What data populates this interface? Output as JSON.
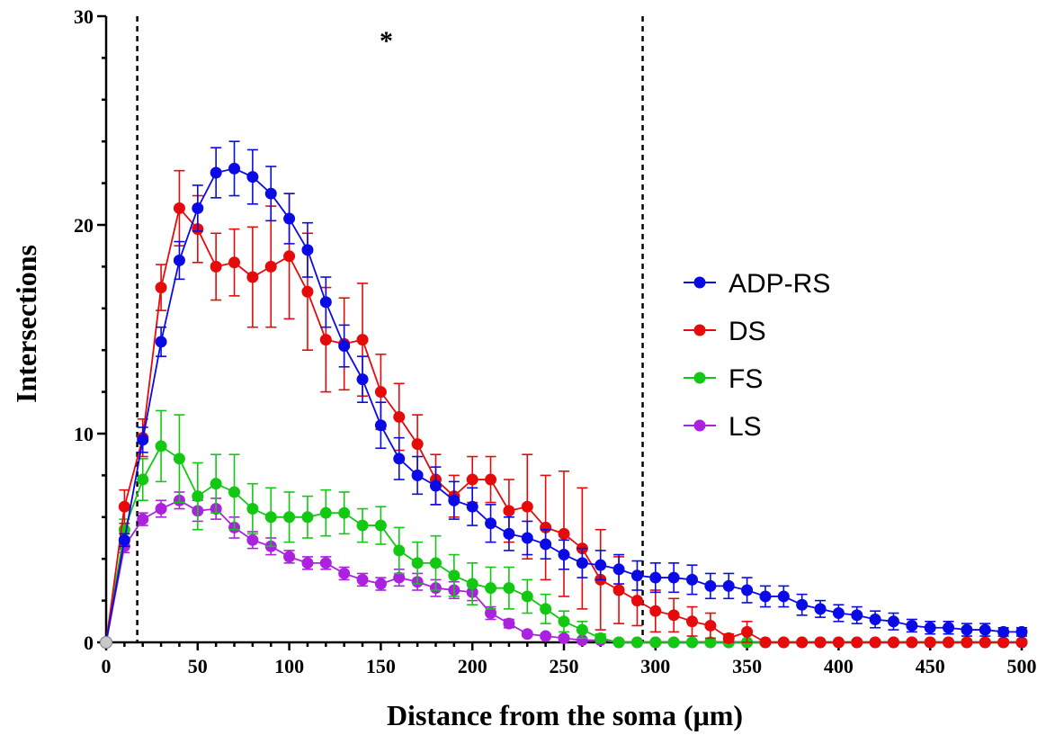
{
  "chart_data": {
    "type": "line",
    "xlabel": "Distance from the soma (μm)",
    "ylabel": "Intersections",
    "xlim": [
      0,
      500
    ],
    "ylim": [
      0,
      30
    ],
    "xticks": [
      0,
      50,
      100,
      150,
      200,
      250,
      300,
      350,
      400,
      450,
      500
    ],
    "yticks": [
      0,
      10,
      20,
      30
    ],
    "grid": false,
    "legend_position": "right",
    "annotations": [
      {
        "text": "*",
        "x": 153,
        "y": 29
      }
    ],
    "reference_lines": [
      {
        "type": "vertical",
        "x": 17,
        "style": "dashed"
      },
      {
        "type": "vertical",
        "x": 293,
        "style": "dashed"
      }
    ],
    "x": [
      0,
      10,
      20,
      30,
      40,
      50,
      60,
      70,
      80,
      90,
      100,
      110,
      120,
      130,
      140,
      150,
      160,
      170,
      180,
      190,
      200,
      210,
      220,
      230,
      240,
      250,
      260,
      270,
      280,
      290,
      300,
      310,
      320,
      330,
      340,
      350,
      360,
      370,
      380,
      390,
      400,
      410,
      420,
      430,
      440,
      450,
      460,
      470,
      480,
      490,
      500
    ],
    "series": [
      {
        "name": "ADP-RS",
        "color": "#0a0ae6",
        "values": [
          0,
          4.9,
          9.7,
          14.4,
          18.3,
          20.8,
          22.5,
          22.7,
          22.3,
          21.5,
          20.3,
          18.8,
          16.3,
          14.2,
          12.6,
          10.4,
          8.8,
          8.0,
          7.5,
          6.8,
          6.5,
          5.7,
          5.2,
          5.0,
          4.7,
          4.2,
          3.8,
          3.7,
          3.5,
          3.2,
          3.1,
          3.1,
          3.0,
          2.7,
          2.7,
          2.5,
          2.2,
          2.2,
          1.8,
          1.6,
          1.4,
          1.3,
          1.1,
          1.0,
          0.8,
          0.7,
          0.7,
          0.6,
          0.6,
          0.5,
          0.5
        ],
        "errors": [
          0,
          0.3,
          0.6,
          0.7,
          0.9,
          1.1,
          1.2,
          1.3,
          1.3,
          1.3,
          1.2,
          1.3,
          1.2,
          1.0,
          1.1,
          1.1,
          1.0,
          0.9,
          0.9,
          0.9,
          0.9,
          0.9,
          0.8,
          0.8,
          0.7,
          0.7,
          0.7,
          0.7,
          0.7,
          0.7,
          0.7,
          0.7,
          0.7,
          0.6,
          0.6,
          0.6,
          0.5,
          0.5,
          0.5,
          0.4,
          0.4,
          0.4,
          0.4,
          0.4,
          0.3,
          0.3,
          0.3,
          0.3,
          0.3,
          0.2,
          0.2
        ]
      },
      {
        "name": "DS",
        "color": "#e60a0a",
        "values": [
          0,
          6.5,
          9.8,
          17.0,
          20.8,
          19.8,
          18.0,
          18.2,
          17.5,
          18.0,
          18.5,
          16.8,
          14.5,
          14.3,
          14.5,
          12.0,
          10.8,
          9.5,
          7.8,
          7.0,
          7.8,
          7.8,
          6.3,
          6.5,
          5.5,
          5.2,
          4.5,
          3.0,
          2.5,
          2.0,
          1.5,
          1.3,
          1.0,
          0.8,
          0.2,
          0.5,
          0,
          0,
          0,
          0,
          0,
          0,
          0,
          0,
          0,
          0,
          0,
          0,
          0,
          0,
          0
        ],
        "errors": [
          0,
          0.8,
          0.9,
          1.1,
          1.8,
          1.6,
          1.6,
          1.6,
          2.4,
          2.9,
          3.0,
          2.8,
          2.5,
          2.2,
          2.7,
          1.8,
          1.6,
          1.4,
          1.2,
          1.0,
          1.1,
          1.1,
          1.5,
          2.5,
          2.5,
          3.0,
          2.9,
          2.4,
          1.6,
          1.2,
          1.0,
          0.8,
          0.7,
          0.6,
          0.2,
          0.5,
          0,
          0,
          0,
          0,
          0,
          0,
          0,
          0,
          0,
          0,
          0,
          0,
          0,
          0,
          0
        ]
      },
      {
        "name": "FS",
        "color": "#12c812",
        "values": [
          0,
          5.4,
          7.8,
          9.4,
          8.8,
          7.0,
          7.6,
          7.2,
          6.4,
          6.0,
          6.0,
          6.0,
          6.2,
          6.2,
          5.6,
          5.6,
          4.4,
          3.8,
          3.8,
          3.2,
          2.8,
          2.6,
          2.6,
          2.2,
          1.6,
          1.0,
          0.6,
          0.2,
          0,
          0,
          0,
          0,
          0,
          0,
          0,
          0,
          0,
          0,
          0,
          0,
          0,
          0,
          0,
          0,
          0,
          0,
          0,
          0,
          0,
          0,
          0
        ],
        "errors": [
          0,
          0.5,
          1.0,
          1.7,
          2.1,
          1.6,
          1.4,
          1.8,
          1.2,
          1.4,
          1.2,
          1.0,
          1.1,
          1.0,
          0.8,
          0.9,
          1.1,
          1.0,
          1.3,
          1.0,
          1.0,
          1.0,
          1.0,
          0.8,
          0.7,
          0.5,
          0.4,
          0.2,
          0,
          0,
          0,
          0,
          0,
          0,
          0,
          0,
          0,
          0,
          0,
          0,
          0,
          0,
          0,
          0,
          0,
          0,
          0,
          0,
          0,
          0,
          0
        ]
      },
      {
        "name": "LS",
        "color": "#aa22dd",
        "values": [
          0,
          4.6,
          5.9,
          6.4,
          6.8,
          6.3,
          6.4,
          5.5,
          4.9,
          4.6,
          4.1,
          3.8,
          3.8,
          3.3,
          3.0,
          2.8,
          3.1,
          2.9,
          2.6,
          2.5,
          2.4,
          1.4,
          0.9,
          0.4,
          0.3,
          0.2,
          0.1,
          0.1,
          0,
          0,
          0,
          0,
          0,
          0,
          0,
          0,
          0,
          0,
          0,
          0,
          0,
          0,
          0,
          0,
          0,
          0,
          0,
          0,
          0,
          0,
          0
        ],
        "errors": [
          0,
          0.3,
          0.3,
          0.4,
          0.4,
          0.5,
          0.5,
          0.5,
          0.4,
          0.4,
          0.3,
          0.3,
          0.3,
          0.3,
          0.3,
          0.3,
          0.4,
          0.4,
          0.4,
          0.4,
          0.4,
          0.3,
          0.2,
          0.1,
          0.1,
          0.1,
          0.1,
          0.1,
          0,
          0,
          0,
          0,
          0,
          0,
          0,
          0,
          0,
          0,
          0,
          0,
          0,
          0,
          0,
          0,
          0,
          0,
          0,
          0,
          0,
          0,
          0
        ]
      }
    ]
  }
}
